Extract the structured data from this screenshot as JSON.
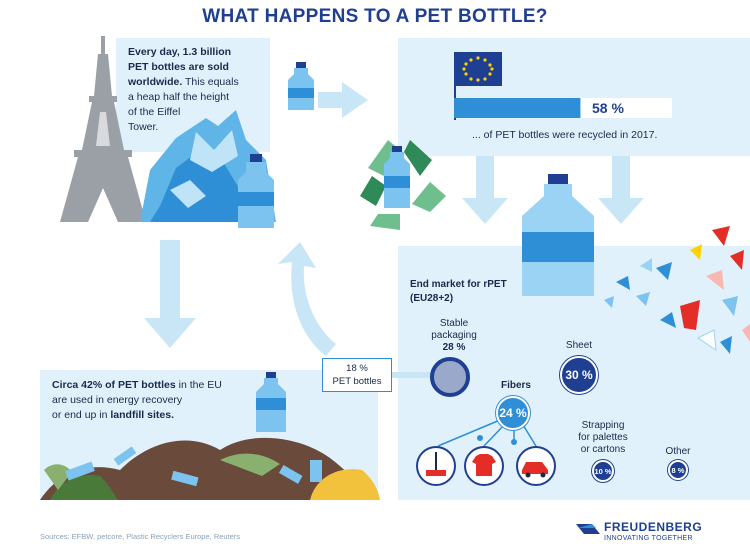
{
  "title": "WHAT HAPPENS TO A PET BOTTLE?",
  "daily": {
    "line1": "Every day, 1.3 billion",
    "line2": "PET bottles are sold",
    "line3": "worldwide.",
    "line3b": " This equals",
    "line4": "a heap half the height",
    "line5": "of the Eiffel",
    "line6": "Tower."
  },
  "eu": {
    "percent": "58 %",
    "recycled_fraction": 0.58,
    "caption": "... of PET bottles were recycled in 2017."
  },
  "landfill": {
    "line1a": "Circa 42% of PET bottles",
    "line1b": " in the EU",
    "line2": "are used in energy recovery",
    "line3a": "or end up in ",
    "line3b": "landfill sites."
  },
  "market": {
    "heading1": "End market for rPET",
    "heading2": "(EU28+2)",
    "stable_label1": "Stable",
    "stable_label2": "packaging",
    "stable_value": "28 %",
    "pet_box_line1": "18 %",
    "pet_box_line2": "PET bottles",
    "sheet_label": "Sheet",
    "sheet_value": "30 %",
    "fibers_label": "Fibers",
    "fibers_value": "24 %",
    "strapping1": "Strapping",
    "strapping2": "for palettes",
    "strapping3": "or cartons",
    "strapping_value": "10 %",
    "other_label": "Other",
    "other_value": "8 %"
  },
  "footer": {
    "sources": "Sources: EFBW, petcore, Plastic Recyclers Europe, Reuters",
    "brand": "FREUDENBERG",
    "tagline": "INNOVATING TOGETHER"
  },
  "colors": {
    "navy": "#1f3f92",
    "panel": "#e0f1fb",
    "arrow": "#c9e6f7",
    "bottle": "#2f8fd6"
  }
}
